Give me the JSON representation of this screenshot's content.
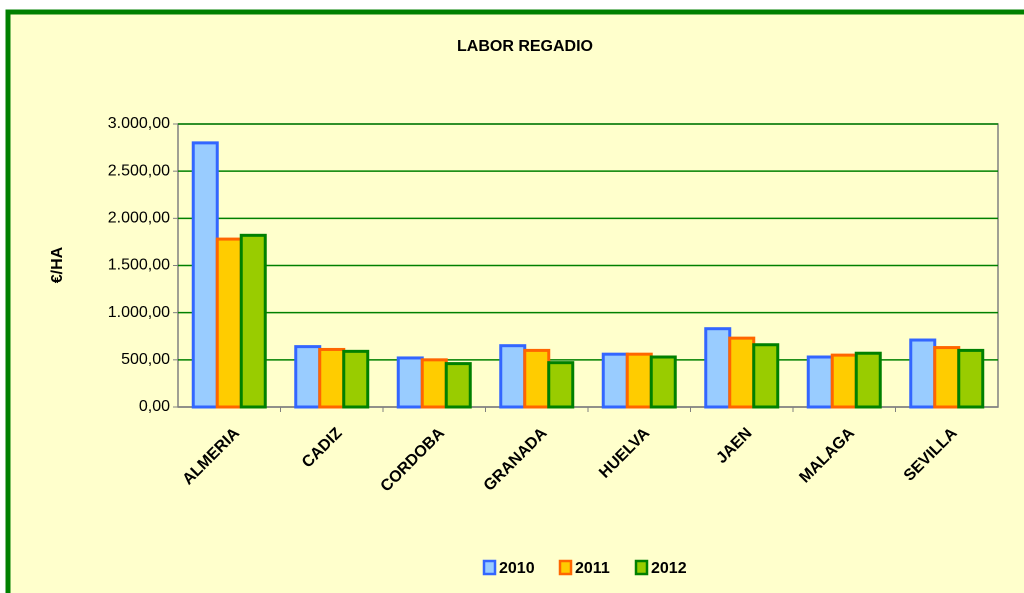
{
  "chart_data": {
    "type": "bar",
    "title": "LABOR REGADIO",
    "y_label": "€/HA",
    "categories": [
      "ALMERIA",
      "CADIZ",
      "CORDOBA",
      "GRANADA",
      "HUELVA",
      "JAEN",
      "MALAGA",
      "SEVILLA"
    ],
    "series": [
      {
        "name": "2010",
        "color": "#99ccff",
        "edge": "#3366ff",
        "values": [
          2800,
          640,
          520,
          650,
          560,
          830,
          530,
          710
        ]
      },
      {
        "name": "2011",
        "color": "#ffcc00",
        "edge": "#ff6600",
        "values": [
          1780,
          610,
          500,
          600,
          560,
          730,
          550,
          630
        ]
      },
      {
        "name": "2012",
        "color": "#99cc00",
        "edge": "#008000",
        "values": [
          1820,
          590,
          460,
          470,
          530,
          660,
          570,
          600
        ]
      }
    ],
    "ylim": [
      0,
      3000
    ],
    "yticks": [
      {
        "value": 0,
        "label": "0,00"
      },
      {
        "value": 500,
        "label": "500,00"
      },
      {
        "value": 1000,
        "label": "1.000,00"
      },
      {
        "value": 1500,
        "label": "1.500,00"
      },
      {
        "value": 2000,
        "label": "2.000,00"
      },
      {
        "value": 2500,
        "label": "2.500,00"
      },
      {
        "value": 3000,
        "label": "3.000,00"
      }
    ],
    "grid": true,
    "grid_color": "#008000",
    "legend": "bottom"
  }
}
